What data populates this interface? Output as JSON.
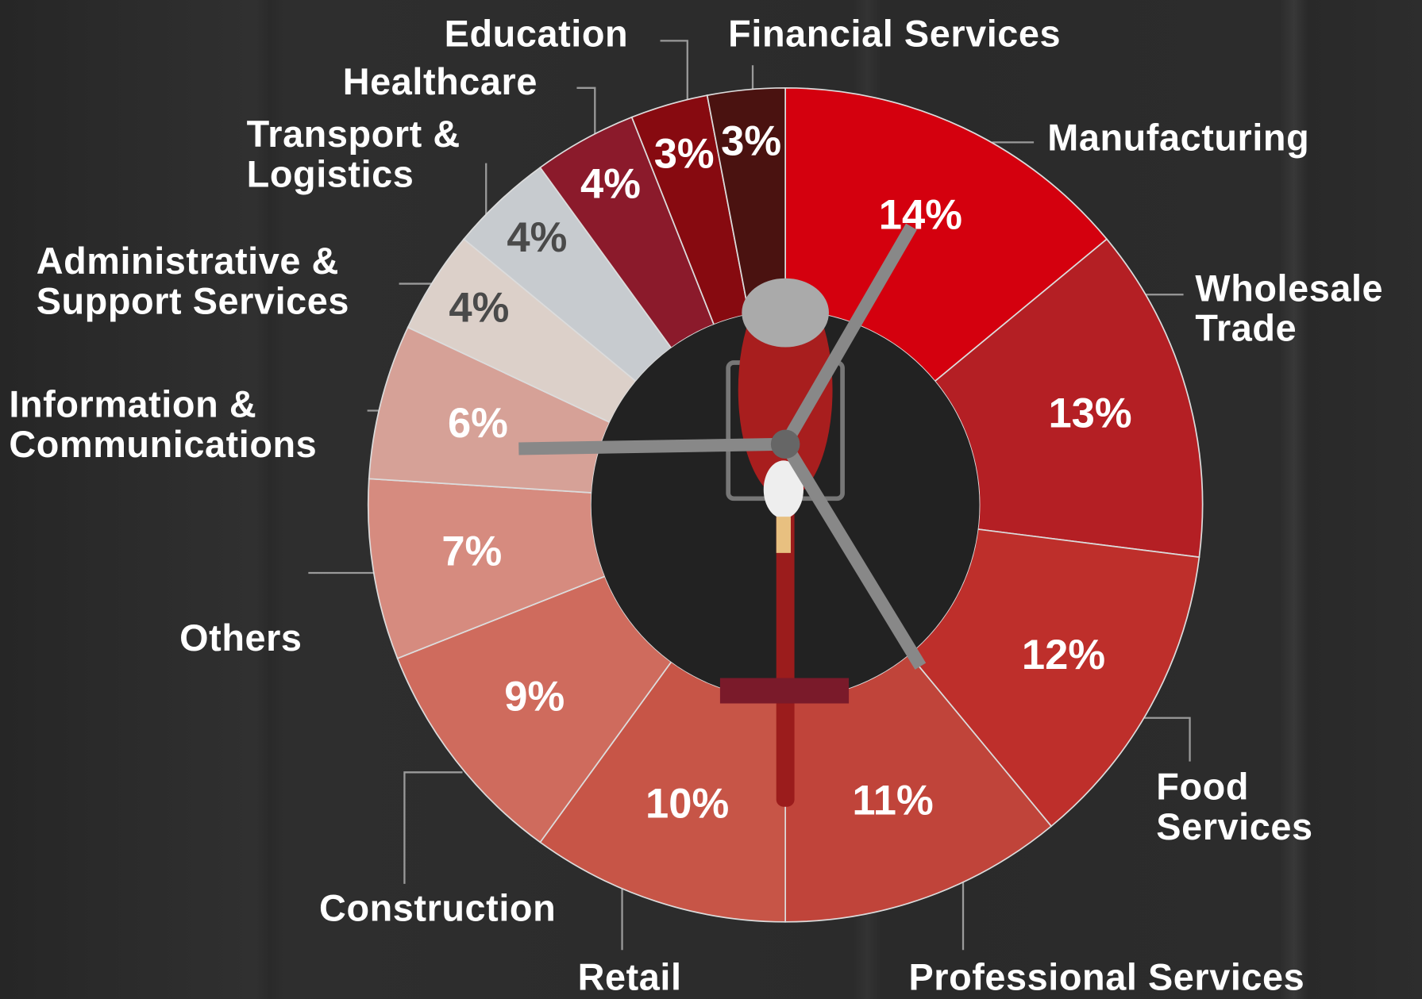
{
  "chart_data": {
    "type": "donut",
    "categories": [
      "Manufacturing",
      "Wholesale\nTrade",
      "Food\nServices",
      "Professional Services",
      "Retail",
      "Construction",
      "Others",
      "Information &\nCommunications",
      "Administrative &\nSupport Services",
      "Transport &\nLogistics",
      "Healthcare",
      "Education",
      "Financial Services"
    ],
    "values": [
      14,
      13,
      12,
      11,
      10,
      9,
      7,
      6,
      4,
      4,
      4,
      3,
      3
    ],
    "value_labels": [
      "14%",
      "13%",
      "12%",
      "11%",
      "10%",
      "9%",
      "7%",
      "6%",
      "4%",
      "4%",
      "4%",
      "3%",
      "3%"
    ],
    "colors": [
      "#d4000e",
      "#b41f24",
      "#be2f2b",
      "#c0443a",
      "#c75547",
      "#cf6b5d",
      "#d68b7f",
      "#d6a197",
      "#dcd0c9",
      "#c7cbcf",
      "#8b1a2b",
      "#870a10",
      "#4a1210"
    ],
    "value_label_colors": [
      "#ffffff",
      "#ffffff",
      "#ffffff",
      "#ffffff",
      "#ffffff",
      "#ffffff",
      "#ffffff",
      "#ffffff",
      "#4a4a4a",
      "#4a4a4a",
      "#ffffff",
      "#ffffff",
      "#ffffff"
    ]
  }
}
